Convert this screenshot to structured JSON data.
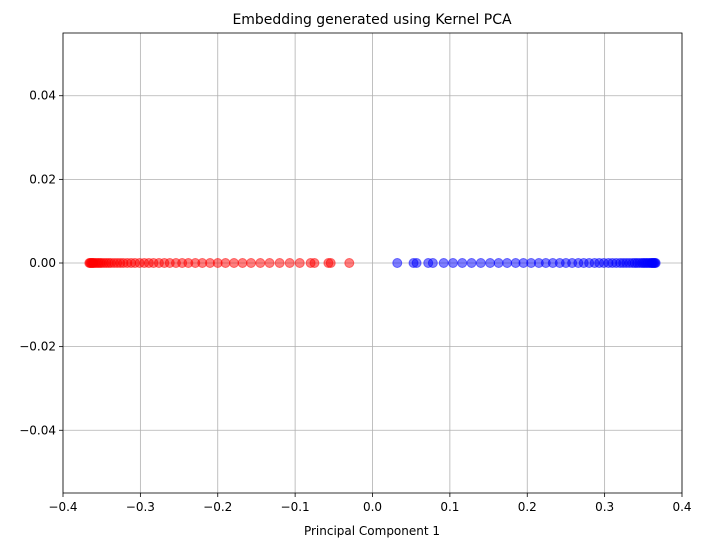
{
  "chart_data": {
    "type": "scatter",
    "title": "Embedding generated using Kernel PCA",
    "xlabel": "Principal Component 1",
    "ylabel": "",
    "xlim": [
      -0.4,
      0.4
    ],
    "ylim": [
      -0.055,
      0.055
    ],
    "xticks": [
      -0.4,
      -0.3,
      -0.2,
      -0.1,
      0.0,
      0.1,
      0.2,
      0.3,
      0.4
    ],
    "xtick_labels": [
      "−0.4",
      "−0.3",
      "−0.2",
      "−0.1",
      "0.0",
      "0.1",
      "0.2",
      "0.3",
      "0.4"
    ],
    "yticks": [
      -0.04,
      -0.02,
      0.0,
      0.02,
      0.04
    ],
    "ytick_labels": [
      "−0.04",
      "−0.02",
      "0.00",
      "0.02",
      "0.04"
    ],
    "grid": true,
    "series": [
      {
        "color": "#ff0000",
        "alpha": 0.5,
        "x": [
          -0.366,
          -0.365,
          -0.364,
          -0.363,
          -0.362,
          -0.361,
          -0.36,
          -0.358,
          -0.356,
          -0.354,
          -0.352,
          -0.35,
          -0.347,
          -0.344,
          -0.341,
          -0.338,
          -0.334,
          -0.33,
          -0.326,
          -0.322,
          -0.317,
          -0.312,
          -0.307,
          -0.301,
          -0.295,
          -0.289,
          -0.283,
          -0.276,
          -0.269,
          -0.262,
          -0.254,
          -0.246,
          -0.238,
          -0.229,
          -0.22,
          -0.21,
          -0.2,
          -0.19,
          -0.179,
          -0.168,
          -0.157,
          -0.145,
          -0.133,
          -0.12,
          -0.107,
          -0.094,
          -0.08,
          -0.075,
          -0.057,
          -0.054,
          -0.03
        ],
        "y": [
          0,
          0,
          0,
          0,
          0,
          0,
          0,
          0,
          0,
          0,
          0,
          0,
          0,
          0,
          0,
          0,
          0,
          0,
          0,
          0,
          0,
          0,
          0,
          0,
          0,
          0,
          0,
          0,
          0,
          0,
          0,
          0,
          0,
          0,
          0,
          0,
          0,
          0,
          0,
          0,
          0,
          0,
          0,
          0,
          0,
          0,
          0,
          0,
          0,
          0,
          0
        ]
      },
      {
        "color": "#0000ff",
        "alpha": 0.5,
        "x": [
          0.032,
          0.053,
          0.057,
          0.072,
          0.078,
          0.092,
          0.104,
          0.116,
          0.128,
          0.14,
          0.152,
          0.163,
          0.174,
          0.185,
          0.195,
          0.205,
          0.215,
          0.224,
          0.233,
          0.242,
          0.25,
          0.258,
          0.266,
          0.273,
          0.28,
          0.287,
          0.293,
          0.299,
          0.305,
          0.31,
          0.315,
          0.32,
          0.324,
          0.328,
          0.332,
          0.336,
          0.339,
          0.342,
          0.345,
          0.348,
          0.35,
          0.352,
          0.354,
          0.356,
          0.358,
          0.36,
          0.361,
          0.362,
          0.363,
          0.364,
          0.365,
          0.366
        ],
        "y": [
          0,
          0,
          0,
          0,
          0,
          0,
          0,
          0,
          0,
          0,
          0,
          0,
          0,
          0,
          0,
          0,
          0,
          0,
          0,
          0,
          0,
          0,
          0,
          0,
          0,
          0,
          0,
          0,
          0,
          0,
          0,
          0,
          0,
          0,
          0,
          0,
          0,
          0,
          0,
          0,
          0,
          0,
          0,
          0,
          0,
          0,
          0,
          0,
          0,
          0,
          0,
          0
        ]
      }
    ]
  }
}
